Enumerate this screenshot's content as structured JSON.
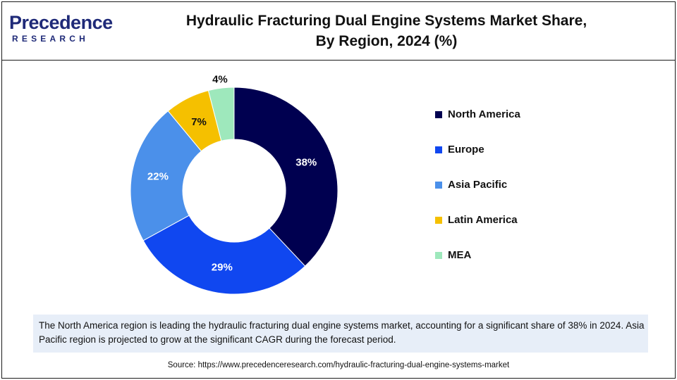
{
  "header": {
    "logo_main": "Precedence",
    "logo_sub": "RESEARCH",
    "title_line1": "Hydraulic Fracturing Dual Engine Systems Market Share,",
    "title_line2": "By Region, 2024 (%)"
  },
  "chart_data": {
    "type": "pie",
    "donut": true,
    "title": "Hydraulic Fracturing Dual Engine Systems Market Share, By Region, 2024 (%)",
    "categories": [
      "North America",
      "Europe",
      "Asia Pacific",
      "Latin America",
      "MEA"
    ],
    "values": [
      38,
      29,
      22,
      7,
      4
    ],
    "labels": [
      "38%",
      "29%",
      "22%",
      "7%",
      "4%"
    ],
    "colors": [
      "#000050",
      "#1047f0",
      "#4b90ea",
      "#f5c000",
      "#9ee8bc"
    ],
    "label_colors": [
      "#ffffff",
      "#ffffff",
      "#ffffff",
      "#111111",
      "#111111"
    ],
    "legend_position": "right"
  },
  "note": "The North America region is leading the hydraulic fracturing dual engine systems market, accounting for a significant share of 38% in 2024. Asia Pacific region is projected to grow at the significant CAGR during the forecast period.",
  "source": "Source: https://www.precedenceresearch.com/hydraulic-fracturing-dual-engine-systems-market"
}
